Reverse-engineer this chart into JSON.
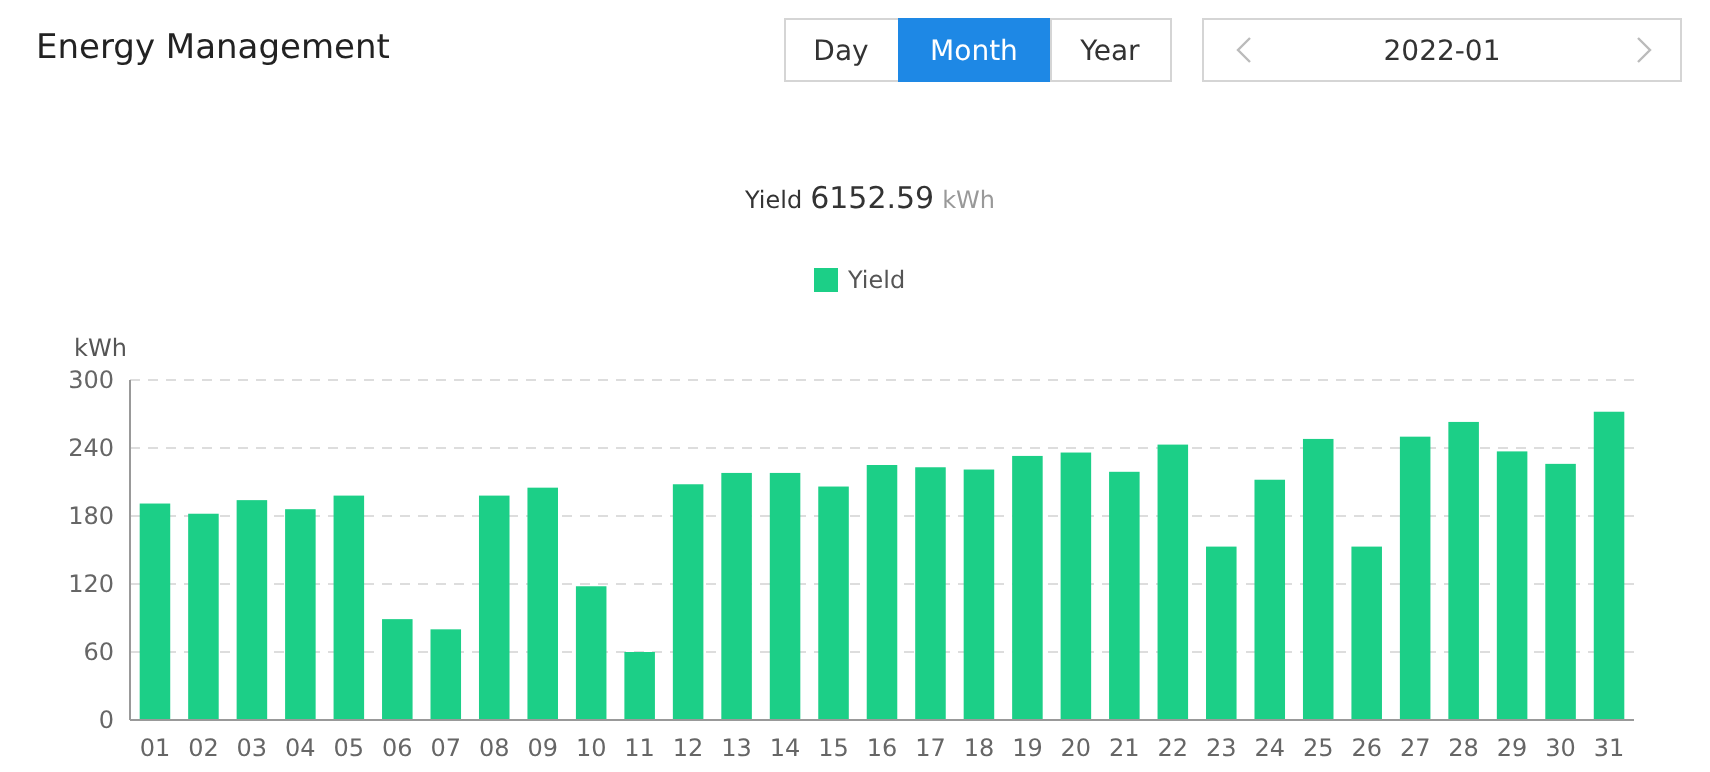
{
  "chart_data": {
    "type": "bar",
    "title": "Energy Management",
    "subtitle": "Yield 6152.59 kWh",
    "annotations": [
      "Day",
      "Month",
      "Year",
      "2022-01"
    ],
    "ylabel": "kWh",
    "categories": [
      "01",
      "02",
      "03",
      "04",
      "05",
      "06",
      "07",
      "08",
      "09",
      "10",
      "11",
      "12",
      "13",
      "14",
      "15",
      "16",
      "17",
      "18",
      "19",
      "20",
      "21",
      "22",
      "23",
      "24",
      "25",
      "26",
      "27",
      "28",
      "29",
      "30",
      "31"
    ],
    "series": [
      {
        "name": "Yield",
        "color": "#1ccf87",
        "values": [
          191,
          182,
          194,
          186,
          198,
          89,
          80,
          198,
          205,
          118,
          60,
          208,
          218,
          218,
          206,
          225,
          223,
          221,
          233,
          236,
          219,
          243,
          153,
          212,
          248,
          153,
          250,
          263,
          237,
          226,
          272
        ]
      }
    ],
    "ylim": [
      0,
      300
    ],
    "yticks": [
      0,
      60,
      120,
      180,
      240,
      300
    ],
    "grid": "y",
    "legend": "top"
  }
}
